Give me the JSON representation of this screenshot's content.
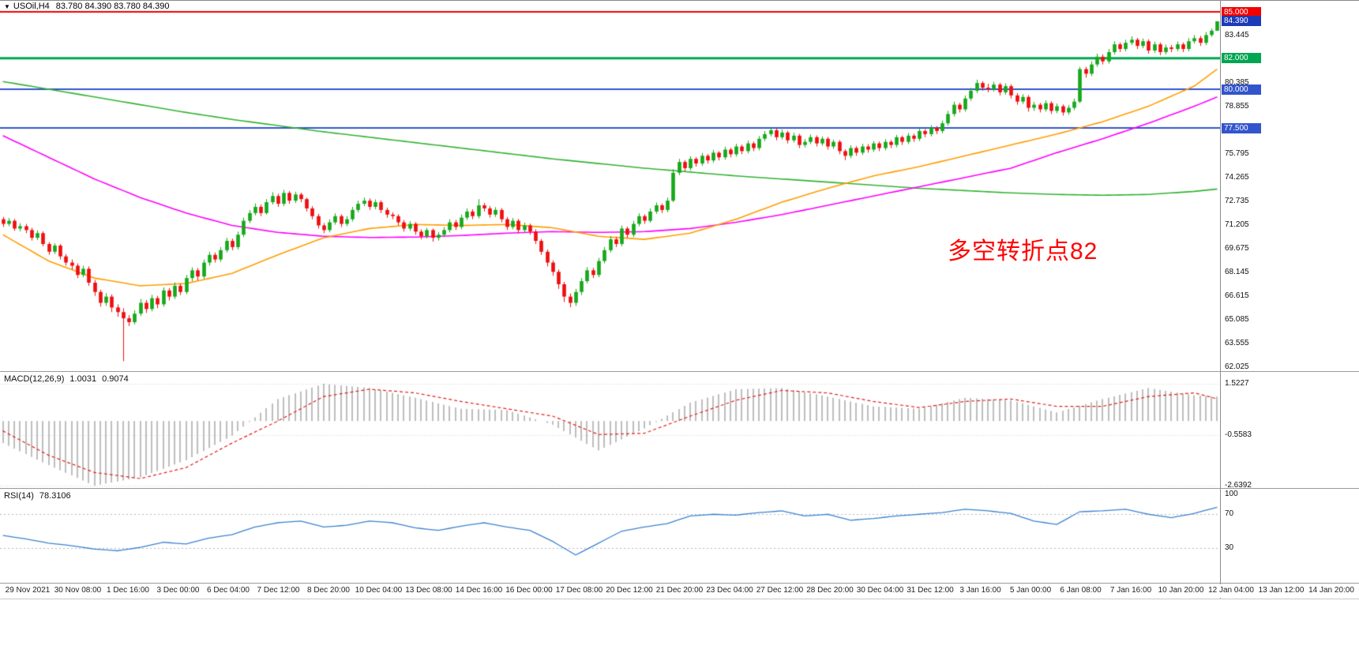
{
  "window": {
    "marker": "▼",
    "symbol_period": "USOil,H4",
    "ohlc": "83.780 84.390 83.780 84.390"
  },
  "annotation": {
    "text": "多空转折点82",
    "color": "#ff0000"
  },
  "style": {
    "up_color": "#17a81b",
    "down_color": "#ee0f0f",
    "hist_color": "#bdbdbd",
    "signal_color": "#e02020",
    "rsi_color": "#3b82d0",
    "level_color": "#b8b8b8",
    "grid_dot_color": "#d4d4d4",
    "axis_text": "#111111"
  },
  "price_axis": {
    "labels": [
      "83.445",
      "80.385",
      "78.855",
      "77.325",
      "75.795",
      "74.265",
      "72.735",
      "71.205",
      "69.675",
      "68.145",
      "66.615",
      "65.085",
      "63.555",
      "62.025"
    ],
    "badges": [
      {
        "text": "85.000",
        "value": 85.0,
        "color": "#f20000"
      },
      {
        "text": "84.390",
        "value": 84.39,
        "color": "#1d3bb8"
      },
      {
        "text": "82.000",
        "value": 82.0,
        "color": "#00a651"
      },
      {
        "text": "80.000",
        "value": 80.0,
        "color": "#3355cc"
      },
      {
        "text": "77.500",
        "value": 77.5,
        "color": "#3355cc"
      }
    ]
  },
  "macd": {
    "label": "MACD(12,26,9)",
    "value_main": "1.0031",
    "value_signal": "0.9074",
    "scale_labels": [
      "1.5227",
      "-0.5583",
      "-2.6392"
    ]
  },
  "rsi": {
    "label": "RSI(14)",
    "value": "78.3106",
    "scale_labels": [
      "100",
      "70",
      "30"
    ],
    "levels": [
      70,
      30
    ]
  },
  "chart_data": {
    "type": "candlestick",
    "symbol": "USOil",
    "timeframe": "H4",
    "title": "USOil,H4 83.780 84.390 83.780 84.390",
    "current_price": 84.39,
    "price_range": [
      62.025,
      85.0
    ],
    "x_labels": [
      "29 Nov 2021",
      "30 Nov 08:00",
      "1 Dec 16:00",
      "3 Dec 00:00",
      "6 Dec 04:00",
      "7 Dec 12:00",
      "8 Dec 20:00",
      "10 Dec 04:00",
      "13 Dec 08:00",
      "14 Dec 16:00",
      "16 Dec 00:00",
      "17 Dec 08:00",
      "20 Dec 12:00",
      "21 Dec 20:00",
      "23 Dec 04:00",
      "27 Dec 12:00",
      "28 Dec 20:00",
      "30 Dec 04:00",
      "31 Dec 12:00",
      "3 Jan 16:00",
      "5 Jan 00:00",
      "6 Jan 08:00",
      "7 Jan 16:00",
      "10 Jan 20:00",
      "12 Jan 04:00",
      "13 Jan 12:00",
      "14 Jan 20:00"
    ],
    "hlines": [
      {
        "price": 85.0,
        "color": "#f20000",
        "width": 2
      },
      {
        "price": 82.0,
        "color": "#00a651",
        "width": 3
      },
      {
        "price": 80.0,
        "color": "#3355cc",
        "width": 2
      },
      {
        "price": 77.5,
        "color": "#3355cc",
        "width": 2
      }
    ],
    "candles": {
      "open_rule": "previous_close",
      "first_open": 71.6,
      "closes": [
        71.3,
        71.5,
        71.0,
        71.15,
        70.9,
        70.4,
        70.7,
        70.0,
        69.5,
        69.9,
        69.2,
        68.8,
        68.6,
        68.0,
        68.4,
        67.5,
        66.9,
        66.2,
        66.6,
        65.9,
        65.6,
        65.2,
        64.95,
        65.5,
        66.2,
        65.8,
        66.5,
        66.1,
        67.0,
        66.6,
        67.3,
        66.9,
        67.8,
        68.3,
        67.9,
        68.8,
        69.3,
        69.0,
        69.6,
        70.2,
        69.8,
        70.6,
        71.5,
        72.0,
        72.4,
        72.0,
        72.7,
        73.1,
        72.6,
        73.3,
        72.8,
        73.2,
        72.9,
        72.3,
        71.8,
        71.2,
        70.9,
        71.4,
        71.8,
        71.3,
        71.6,
        72.2,
        72.6,
        72.8,
        72.4,
        72.7,
        72.2,
        71.9,
        71.8,
        71.4,
        71.0,
        71.3,
        70.8,
        70.5,
        70.9,
        70.4,
        70.6,
        70.9,
        71.4,
        71.1,
        71.7,
        72.1,
        71.8,
        72.5,
        72.3,
        71.9,
        72.2,
        71.6,
        71.1,
        71.5,
        70.9,
        71.2,
        70.8,
        70.2,
        69.5,
        68.8,
        68.2,
        67.4,
        66.6,
        66.2,
        66.9,
        67.6,
        68.3,
        68.0,
        68.9,
        69.6,
        70.3,
        70.0,
        71.0,
        70.6,
        71.3,
        71.8,
        71.5,
        72.1,
        72.5,
        72.2,
        72.8,
        74.6,
        75.3,
        74.9,
        75.5,
        75.2,
        75.7,
        75.4,
        75.9,
        75.6,
        76.1,
        75.8,
        76.3,
        76.0,
        76.5,
        76.2,
        76.8,
        77.1,
        77.35,
        76.9,
        77.2,
        76.7,
        77.0,
        76.4,
        76.6,
        76.9,
        76.5,
        76.8,
        76.3,
        76.6,
        76.0,
        75.7,
        76.2,
        75.9,
        76.3,
        76.1,
        76.5,
        76.2,
        76.6,
        76.4,
        76.9,
        76.6,
        77.0,
        76.8,
        77.3,
        77.1,
        77.5,
        77.3,
        77.8,
        78.4,
        79.0,
        78.7,
        79.4,
        79.9,
        80.4,
        80.1,
        80.0,
        80.3,
        79.8,
        80.2,
        79.6,
        79.2,
        79.5,
        78.8,
        79.0,
        78.7,
        79.1,
        78.6,
        78.9,
        78.5,
        78.8,
        79.2,
        81.3,
        81.0,
        81.6,
        82.1,
        81.8,
        82.4,
        82.9,
        82.6,
        83.0,
        83.2,
        82.8,
        83.1,
        82.5,
        82.9,
        82.4,
        82.7,
        82.6,
        82.9,
        82.6,
        83.1,
        83.3,
        83.0,
        83.5,
        83.78,
        84.39
      ],
      "highs": [
        71.75,
        71.68,
        71.62,
        71.34,
        71.3,
        71.05,
        70.88,
        70.82,
        70.12,
        70.05,
        70.0,
        69.35,
        69.0,
        68.75,
        68.6,
        68.55,
        67.68,
        67.05,
        66.82,
        66.75,
        66.1,
        65.85,
        65.4,
        65.72,
        66.45,
        66.38,
        66.72,
        66.65,
        67.2,
        67.15,
        67.52,
        67.45,
        68.0,
        68.5,
        68.45,
        69.0,
        69.5,
        69.45,
        69.8,
        70.4,
        70.35,
        70.8,
        71.7,
        72.2,
        72.62,
        72.55,
        72.9,
        73.35,
        73.25,
        73.5,
        73.42,
        73.38,
        73.32,
        73.0,
        72.45,
        71.95,
        71.35,
        71.6,
        71.98,
        71.92,
        71.8,
        72.4,
        72.8,
        73.0,
        72.95,
        72.88,
        72.82,
        72.35,
        72.05,
        71.92,
        71.55,
        71.48,
        71.42,
        70.95,
        71.05,
        71.0,
        70.78,
        71.1,
        71.6,
        71.55,
        71.9,
        72.3,
        72.25,
        72.9,
        72.65,
        72.45,
        72.38,
        72.32,
        71.75,
        71.68,
        71.62,
        71.38,
        71.32,
        70.95,
        70.32,
        69.65,
        68.95,
        68.35,
        67.55,
        66.8,
        67.1,
        67.8,
        68.5,
        68.45,
        69.1,
        69.8,
        70.5,
        70.45,
        71.2,
        71.12,
        71.5,
        71.98,
        71.92,
        72.3,
        72.68,
        72.62,
        73.0,
        74.85,
        75.5,
        75.42,
        75.68,
        75.62,
        75.88,
        75.82,
        76.08,
        76.0,
        76.28,
        76.22,
        76.48,
        76.42,
        76.68,
        76.62,
        76.98,
        77.3,
        77.5,
        77.45,
        77.4,
        77.32,
        77.18,
        77.12,
        76.78,
        77.08,
        77.02,
        76.95,
        76.92,
        76.75,
        76.72,
        76.12,
        76.38,
        76.32,
        76.48,
        76.45,
        76.65,
        76.62,
        76.78,
        76.72,
        77.05,
        77.0,
        77.18,
        77.12,
        77.48,
        77.42,
        77.68,
        77.62,
        77.98,
        78.6,
        79.2,
        79.12,
        79.6,
        80.08,
        80.62,
        80.52,
        80.35,
        80.48,
        80.42,
        80.38,
        80.32,
        79.75,
        79.68,
        79.62,
        79.18,
        79.12,
        79.28,
        79.22,
        79.08,
        79.02,
        78.98,
        79.4,
        81.45,
        81.45,
        81.8,
        82.3,
        82.25,
        82.6,
        83.1,
        83.02,
        83.2,
        83.42,
        83.32,
        83.28,
        83.22,
        83.08,
        83.02,
        82.88,
        82.85,
        83.08,
        83.02,
        83.3,
        83.5,
        83.45,
        83.7,
        83.92,
        84.39
      ],
      "lows": [
        71.1,
        71.15,
        70.85,
        70.82,
        70.7,
        70.22,
        70.25,
        69.85,
        69.3,
        69.35,
        69.0,
        68.6,
        68.35,
        67.8,
        67.85,
        67.3,
        66.65,
        65.95,
        66.0,
        65.6,
        65.3,
        62.43,
        64.7,
        64.8,
        65.35,
        65.55,
        65.65,
        65.85,
        65.95,
        66.35,
        66.45,
        66.7,
        66.75,
        67.6,
        67.65,
        67.75,
        68.6,
        68.8,
        68.85,
        69.45,
        69.6,
        69.65,
        70.45,
        71.35,
        71.85,
        71.8,
        71.9,
        72.55,
        72.4,
        72.45,
        72.6,
        72.65,
        72.7,
        72.1,
        71.6,
        71.0,
        70.7,
        70.75,
        71.25,
        71.1,
        71.15,
        71.45,
        72.05,
        72.45,
        72.2,
        72.25,
        72.0,
        71.7,
        71.6,
        71.2,
        70.8,
        70.85,
        70.6,
        70.3,
        70.35,
        70.15,
        70.22,
        70.45,
        70.75,
        70.9,
        70.95,
        71.55,
        71.6,
        71.65,
        72.1,
        71.7,
        71.75,
        71.4,
        70.9,
        70.95,
        70.7,
        70.75,
        70.6,
        70.0,
        69.3,
        68.55,
        67.95,
        67.1,
        66.25,
        65.92,
        66.0,
        66.7,
        67.45,
        67.8,
        67.85,
        68.75,
        69.45,
        69.8,
        69.85,
        70.4,
        70.45,
        71.15,
        71.3,
        71.38,
        71.95,
        72.0,
        72.05,
        72.7,
        74.45,
        74.7,
        74.75,
        75.0,
        75.05,
        75.2,
        75.25,
        75.4,
        75.45,
        75.6,
        75.65,
        75.8,
        75.85,
        76.0,
        76.05,
        76.65,
        76.95,
        76.7,
        76.75,
        76.5,
        76.55,
        76.2,
        76.25,
        76.45,
        76.3,
        76.35,
        76.1,
        76.15,
        75.8,
        75.42,
        75.55,
        75.7,
        75.75,
        75.9,
        75.95,
        76.0,
        76.05,
        76.2,
        76.25,
        76.4,
        76.45,
        76.6,
        76.65,
        76.9,
        76.95,
        77.1,
        77.15,
        77.65,
        78.25,
        78.5,
        78.55,
        79.25,
        79.75,
        79.9,
        79.8,
        79.85,
        79.6,
        79.65,
        79.4,
        79.0,
        79.05,
        78.55,
        78.6,
        78.5,
        78.55,
        78.4,
        78.45,
        78.3,
        78.35,
        78.65,
        79.1,
        80.75,
        80.85,
        81.45,
        81.6,
        81.65,
        82.25,
        82.4,
        82.45,
        82.85,
        82.6,
        82.65,
        82.3,
        82.35,
        82.2,
        82.25,
        82.4,
        82.45,
        82.4,
        82.45,
        82.95,
        82.8,
        82.85,
        83.38,
        83.78
      ]
    },
    "anchor_bars": [
      0,
      8,
      16,
      24,
      32,
      40,
      48,
      56,
      64,
      72,
      80,
      88,
      96,
      104,
      112,
      120,
      128,
      136,
      144,
      152,
      160,
      168,
      176,
      184,
      192,
      200,
      208,
      212
    ],
    "moving_averages": [
      {
        "name": "ma-slow-green",
        "color": "#33b333",
        "values": [
          80.5,
          80.0,
          79.5,
          79.0,
          78.5,
          78.05,
          77.65,
          77.25,
          76.9,
          76.55,
          76.2,
          75.85,
          75.5,
          75.2,
          74.9,
          74.65,
          74.4,
          74.2,
          74.0,
          73.8,
          73.6,
          73.45,
          73.3,
          73.2,
          73.15,
          73.2,
          73.4,
          73.55
        ]
      },
      {
        "name": "ma-mid-magenta",
        "color": "#ff00ff",
        "values": [
          77.0,
          75.6,
          74.2,
          73.0,
          72.0,
          71.2,
          70.75,
          70.5,
          70.42,
          70.45,
          70.55,
          70.7,
          70.8,
          70.75,
          70.8,
          71.0,
          71.4,
          71.9,
          72.5,
          73.1,
          73.7,
          74.3,
          74.9,
          75.9,
          76.8,
          77.8,
          78.9,
          79.5
        ]
      },
      {
        "name": "ma-fast-orange",
        "color": "#ff9d00",
        "values": [
          70.6,
          68.9,
          67.8,
          67.3,
          67.45,
          68.1,
          69.3,
          70.4,
          71.0,
          71.26,
          71.2,
          71.26,
          71.05,
          70.5,
          70.3,
          70.7,
          71.6,
          72.7,
          73.6,
          74.4,
          75.0,
          75.7,
          76.4,
          77.1,
          77.9,
          78.9,
          80.2,
          81.3
        ]
      }
    ],
    "macd_series": {
      "histogram": [
        -0.9,
        -1.8,
        -2.6392,
        -2.3,
        -1.6,
        -0.6,
        0.9,
        1.5227,
        1.35,
        0.95,
        0.5,
        0.45,
        -0.15,
        -1.2,
        -0.3,
        0.75,
        1.3,
        1.35,
        1.0,
        0.6,
        0.5,
        0.95,
        0.85,
        0.35,
        0.9,
        1.35,
        1.05,
        1.0031
      ],
      "signal": [
        -0.4,
        -1.4,
        -2.1,
        -2.35,
        -1.9,
        -0.9,
        0.0,
        1.0,
        1.3,
        1.15,
        0.8,
        0.5,
        0.2,
        -0.55,
        -0.5,
        0.2,
        0.85,
        1.25,
        1.15,
        0.8,
        0.55,
        0.8,
        0.9,
        0.6,
        0.6,
        1.0,
        1.15,
        0.9074
      ],
      "scale_max": 1.5227,
      "scale_min": -2.6392
    },
    "rsi_series": {
      "bar_step": 4,
      "values": [
        45,
        41,
        36,
        33,
        29,
        27,
        31,
        37,
        35,
        42,
        46,
        55,
        60,
        62,
        55,
        57,
        62,
        60,
        54,
        51,
        56,
        60,
        55,
        51,
        38,
        22,
        36,
        50,
        55,
        59,
        68,
        70,
        69,
        72,
        74,
        68,
        70,
        63,
        65,
        68,
        70,
        72,
        76,
        74,
        71,
        62,
        58,
        73,
        74,
        76,
        70,
        66,
        71,
        78.31
      ],
      "current": 78.3106
    }
  }
}
